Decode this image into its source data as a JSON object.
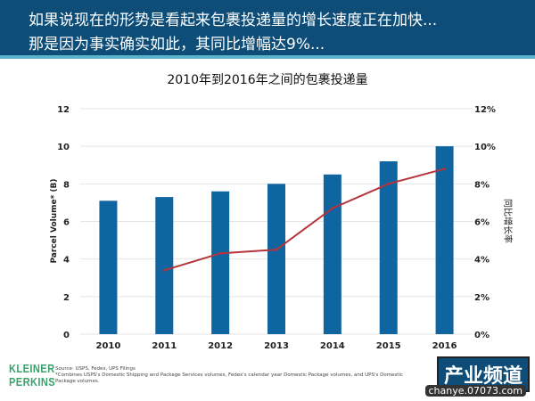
{
  "header": {
    "line1": "如果说现在的形势是看起来包裹投递量的增长速度正在加快...",
    "line2": "那是因为事实确实如此，其同比增幅达9%..."
  },
  "footer": {
    "logo": "KLEINER PERKINS",
    "source": "Source: USPS, Fedex, UPS Filings",
    "note": "*Combines USPS's Domestic Shipping and Package Services volumes, Fedex's calendar year Domestic Package volumes, and UPS's Domestic Package volumes.",
    "watermark_main": "产业频道",
    "watermark_url": "chanye.07073.com"
  },
  "chart_data": {
    "type": "bar",
    "title": "2010年到2016年之间的包裹投递量",
    "categories": [
      "2010",
      "2011",
      "2012",
      "2013",
      "2014",
      "2015",
      "2016"
    ],
    "ylabel": "Parcel Volume* (B)",
    "y2label": "同比增长率",
    "ylim": [
      0,
      12
    ],
    "y2lim": [
      0,
      12
    ],
    "yticks": [
      "0",
      "2",
      "4",
      "6",
      "8",
      "10",
      "12"
    ],
    "y2ticks": [
      "0%",
      "2%",
      "4%",
      "6%",
      "8%",
      "10%",
      "12%"
    ],
    "grid": true,
    "series": [
      {
        "type": "bar",
        "axis": "left",
        "color": "#0f65a0",
        "values": [
          7.1,
          7.3,
          7.6,
          8.0,
          8.5,
          9.2,
          10.0
        ]
      },
      {
        "type": "line",
        "axis": "right",
        "color": "#b5343a",
        "values": [
          null,
          3.4,
          4.3,
          4.5,
          6.7,
          8.0,
          8.8
        ]
      }
    ]
  }
}
